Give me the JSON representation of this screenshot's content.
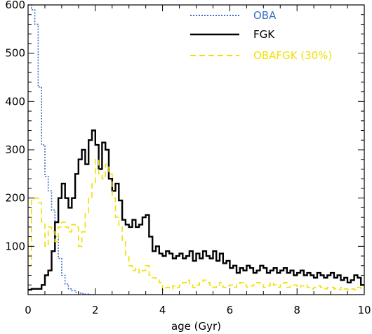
{
  "chart_data": {
    "type": "line",
    "title": "",
    "xlabel": "age (Gyr)",
    "ylabel": "",
    "xlim": [
      0,
      10
    ],
    "ylim": [
      0,
      600
    ],
    "xticks": [
      0,
      2,
      4,
      6,
      8,
      10
    ],
    "yticks": [
      100,
      200,
      300,
      400,
      500,
      600
    ],
    "grid": false,
    "legend_position": "top-right",
    "series": [
      {
        "name": "OBA",
        "color": "#3a6fc8",
        "dash": "2,2",
        "step": true,
        "x": [
          0.0,
          0.1,
          0.2,
          0.3,
          0.4,
          0.5,
          0.6,
          0.7,
          0.8,
          0.9,
          1.0,
          1.1,
          1.2,
          1.3,
          1.4,
          1.5,
          1.6,
          1.7,
          1.8,
          1.9
        ],
        "y": [
          600,
          590,
          560,
          430,
          310,
          245,
          215,
          175,
          120,
          75,
          40,
          22,
          12,
          8,
          5,
          3,
          2,
          1,
          0,
          0
        ]
      },
      {
        "name": "FGK",
        "color": "#000000",
        "dash": "",
        "step": true,
        "x": [
          0.0,
          0.1,
          0.2,
          0.3,
          0.4,
          0.5,
          0.6,
          0.7,
          0.8,
          0.9,
          1.0,
          1.1,
          1.2,
          1.3,
          1.4,
          1.5,
          1.6,
          1.7,
          1.8,
          1.9,
          2.0,
          2.1,
          2.2,
          2.3,
          2.4,
          2.5,
          2.6,
          2.7,
          2.8,
          2.9,
          3.0,
          3.1,
          3.2,
          3.3,
          3.4,
          3.5,
          3.6,
          3.7,
          3.8,
          3.9,
          4.0,
          4.1,
          4.2,
          4.3,
          4.4,
          4.5,
          4.6,
          4.7,
          4.8,
          4.9,
          5.0,
          5.1,
          5.2,
          5.3,
          5.4,
          5.5,
          5.6,
          5.7,
          5.8,
          5.9,
          6.0,
          6.1,
          6.2,
          6.3,
          6.4,
          6.5,
          6.6,
          6.7,
          6.8,
          6.9,
          7.0,
          7.1,
          7.2,
          7.3,
          7.4,
          7.5,
          7.6,
          7.7,
          7.8,
          7.9,
          8.0,
          8.1,
          8.2,
          8.3,
          8.4,
          8.5,
          8.6,
          8.7,
          8.8,
          8.9,
          9.0,
          9.1,
          9.2,
          9.3,
          9.4,
          9.5,
          9.6,
          9.7,
          9.8,
          9.9
        ],
        "y": [
          10,
          12,
          12,
          12,
          20,
          40,
          50,
          90,
          150,
          200,
          230,
          200,
          180,
          200,
          250,
          280,
          300,
          270,
          320,
          340,
          310,
          260,
          315,
          300,
          240,
          215,
          230,
          195,
          155,
          145,
          140,
          155,
          140,
          145,
          160,
          165,
          120,
          90,
          100,
          85,
          80,
          90,
          85,
          75,
          80,
          85,
          75,
          80,
          90,
          70,
          85,
          75,
          90,
          80,
          75,
          90,
          70,
          85,
          65,
          70,
          55,
          60,
          45,
          55,
          50,
          60,
          55,
          45,
          50,
          60,
          55,
          45,
          50,
          55,
          45,
          50,
          55,
          45,
          50,
          40,
          45,
          50,
          40,
          45,
          40,
          35,
          45,
          40,
          35,
          40,
          45,
          35,
          40,
          30,
          35,
          25,
          30,
          40,
          35,
          20
        ]
      },
      {
        "name": "OBAFGK (30%)",
        "color": "#f0e000",
        "dash": "8,5",
        "step": true,
        "x": [
          0.0,
          0.1,
          0.2,
          0.3,
          0.4,
          0.5,
          0.6,
          0.7,
          0.8,
          0.9,
          1.0,
          1.1,
          1.2,
          1.3,
          1.4,
          1.5,
          1.6,
          1.7,
          1.8,
          1.9,
          2.0,
          2.1,
          2.2,
          2.3,
          2.4,
          2.5,
          2.6,
          2.7,
          2.8,
          2.9,
          3.0,
          3.1,
          3.2,
          3.3,
          3.4,
          3.5,
          3.6,
          3.7,
          3.8,
          3.9,
          4.0,
          4.1,
          4.2,
          4.3,
          4.4,
          4.5,
          4.6,
          4.7,
          4.8,
          4.9,
          5.0,
          5.1,
          5.2,
          5.3,
          5.4,
          5.5,
          5.6,
          5.7,
          5.8,
          5.9,
          6.0,
          6.1,
          6.2,
          6.3,
          6.4,
          6.5,
          6.6,
          6.7,
          6.8,
          6.9,
          7.0,
          7.1,
          7.2,
          7.3,
          7.4,
          7.5,
          7.6,
          7.7,
          7.8,
          7.9,
          8.0,
          8.1,
          8.2,
          8.3,
          8.4,
          8.5,
          8.6,
          8.7,
          8.8,
          8.9,
          9.0,
          9.1,
          9.2,
          9.3,
          9.4,
          9.5,
          9.6,
          9.7,
          9.8,
          9.9
        ],
        "y": [
          60,
          195,
          200,
          190,
          150,
          100,
          140,
          130,
          110,
          140,
          150,
          140,
          130,
          145,
          140,
          100,
          130,
          170,
          200,
          230,
          280,
          250,
          240,
          270,
          250,
          200,
          160,
          140,
          110,
          80,
          60,
          50,
          55,
          45,
          50,
          60,
          40,
          35,
          30,
          25,
          10,
          15,
          12,
          18,
          15,
          20,
          25,
          30,
          20,
          15,
          20,
          25,
          30,
          25,
          20,
          15,
          20,
          25,
          15,
          18,
          20,
          15,
          20,
          25,
          20,
          15,
          18,
          20,
          25,
          20,
          15,
          18,
          25,
          20,
          15,
          20,
          25,
          15,
          18,
          20,
          15,
          18,
          20,
          15,
          12,
          15,
          18,
          15,
          12,
          15,
          15,
          12,
          10,
          15,
          12,
          10,
          12,
          10,
          15,
          10
        ]
      }
    ]
  }
}
